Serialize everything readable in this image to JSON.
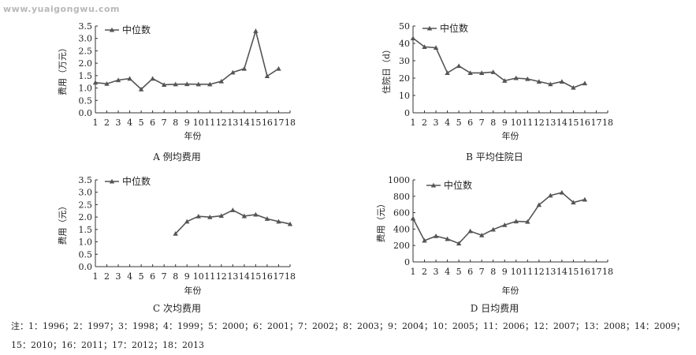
{
  "watermark": "www.yuaigongwu.com",
  "note": "注：1：1996；2：1997；3：1998；4：1999；5：2000；6：2001；7：2002；8：2003；9：2004；10：2005；11：2006；12：2007；13：2008；14：2009；15：2010；16：2011；17：2012；18：2013",
  "line_color": "#555555",
  "chart_data": [
    {
      "type": "line",
      "title": "A 例均费用",
      "xlabel": "年份",
      "ylabel": "费用（万元）",
      "x_ticks": [
        "1",
        "2",
        "3",
        "4",
        "5",
        "6",
        "7",
        "8",
        "9",
        "10",
        "11",
        "12",
        "13",
        "14",
        "15",
        "16",
        "17",
        "18"
      ],
      "y_ticks": [
        "0.0",
        "0.5",
        "1.0",
        "1.5",
        "2.0",
        "2.5",
        "3.0",
        "3.5"
      ],
      "ylim": [
        0,
        3.5
      ],
      "legend_position": "top-left",
      "series": [
        {
          "name": "中位数",
          "x": [
            1,
            2,
            3,
            4,
            5,
            6,
            7,
            8,
            9,
            10,
            11,
            12,
            13,
            14,
            15,
            16,
            17
          ],
          "values": [
            1.22,
            1.17,
            1.32,
            1.38,
            0.95,
            1.38,
            1.13,
            1.15,
            1.16,
            1.15,
            1.15,
            1.27,
            1.63,
            1.78,
            3.3,
            1.48,
            1.78
          ]
        }
      ]
    },
    {
      "type": "line",
      "title": "B 平均住院日",
      "xlabel": "年份",
      "ylabel": "住院日（d）",
      "x_ticks": [
        "1",
        "2",
        "3",
        "4",
        "5",
        "6",
        "7",
        "8",
        "9",
        "10",
        "11",
        "12",
        "13",
        "14",
        "15",
        "16",
        "17",
        "18"
      ],
      "y_ticks": [
        "0",
        "10",
        "20",
        "30",
        "40",
        "50"
      ],
      "ylim": [
        0,
        50
      ],
      "legend_position": "top-left",
      "series": [
        {
          "name": "中位数",
          "x": [
            1,
            2,
            3,
            4,
            5,
            6,
            7,
            8,
            9,
            10,
            11,
            12,
            13,
            14,
            15,
            16
          ],
          "values": [
            43,
            38,
            37.5,
            23,
            27,
            23,
            23,
            23.5,
            18.5,
            20,
            19.5,
            18,
            16.5,
            18,
            14.5,
            17
          ]
        }
      ]
    },
    {
      "type": "line",
      "title": "C 次均费用",
      "xlabel": "年份",
      "ylabel": "费用（元）",
      "x_ticks": [
        "1",
        "2",
        "3",
        "4",
        "5",
        "6",
        "7",
        "8",
        "9",
        "10",
        "11",
        "12",
        "13",
        "14",
        "15",
        "16",
        "17",
        "18"
      ],
      "y_ticks": [
        "0.0",
        "0.5",
        "1.0",
        "1.5",
        "2.0",
        "2.5",
        "3.0",
        "3.5"
      ],
      "ylim": [
        0,
        3.5
      ],
      "legend_position": "top-left",
      "series": [
        {
          "name": "中位数",
          "x": [
            8,
            9,
            10,
            11,
            12,
            13,
            14,
            15,
            16,
            17,
            18
          ],
          "values": [
            1.33,
            1.82,
            2.03,
            2.0,
            2.05,
            2.28,
            2.04,
            2.1,
            1.93,
            1.82,
            1.72
          ]
        }
      ]
    },
    {
      "type": "line",
      "title": "D 日均费用",
      "xlabel": "年份",
      "ylabel": "费用（元）",
      "x_ticks": [
        "1",
        "2",
        "3",
        "4",
        "5",
        "6",
        "7",
        "8",
        "9",
        "10",
        "11",
        "12",
        "13",
        "14",
        "15",
        "16",
        "17",
        "18"
      ],
      "y_ticks": [
        "0",
        "200",
        "400",
        "600",
        "800",
        "1000"
      ],
      "ylim": [
        0,
        1000
      ],
      "legend_position": "top-left",
      "series": [
        {
          "name": "中位数",
          "x": [
            1,
            2,
            3,
            4,
            5,
            6,
            7,
            8,
            9,
            10,
            11,
            12,
            13,
            14,
            15,
            16
          ],
          "values": [
            530,
            260,
            315,
            280,
            225,
            375,
            325,
            395,
            450,
            495,
            490,
            695,
            810,
            845,
            725,
            760
          ]
        }
      ]
    }
  ]
}
